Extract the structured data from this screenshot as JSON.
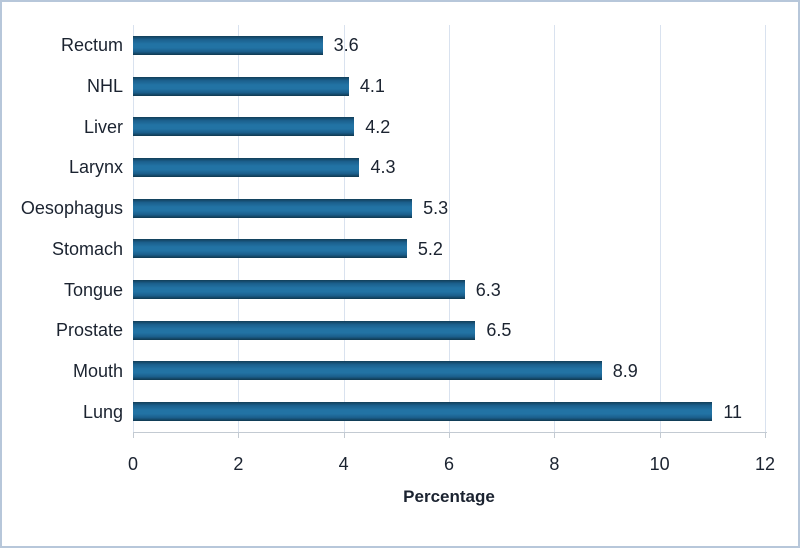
{
  "chart_data": {
    "type": "bar",
    "orientation": "horizontal",
    "categories": [
      "Rectum",
      "NHL",
      "Liver",
      "Larynx",
      "Oesophagus",
      "Stomach",
      "Tongue",
      "Prostate",
      "Mouth",
      "Lung"
    ],
    "values": [
      3.6,
      4.1,
      4.2,
      4.3,
      5.3,
      5.2,
      6.3,
      6.5,
      8.9,
      11
    ],
    "value_labels": [
      "3.6",
      "4.1",
      "4.2",
      "4.3",
      "5.3",
      "5.2",
      "6.3",
      "6.5",
      "8.9",
      "11"
    ],
    "title": "",
    "xlabel": "Percentage",
    "ylabel": "",
    "xlim": [
      0,
      12
    ],
    "xticks": [
      0,
      2,
      4,
      6,
      8,
      10,
      12
    ],
    "xtick_labels": [
      "0",
      "2",
      "4",
      "6",
      "8",
      "10",
      "12"
    ],
    "grid": true,
    "legend": false,
    "colors": {
      "bar_mid": "#2273a4",
      "bar_edge": "#123e58",
      "gridline": "#d9e2ef",
      "axis": "#c3cad2",
      "text": "#1b2330",
      "frame_border": "#b7c7da",
      "background": "#ffffff"
    }
  }
}
